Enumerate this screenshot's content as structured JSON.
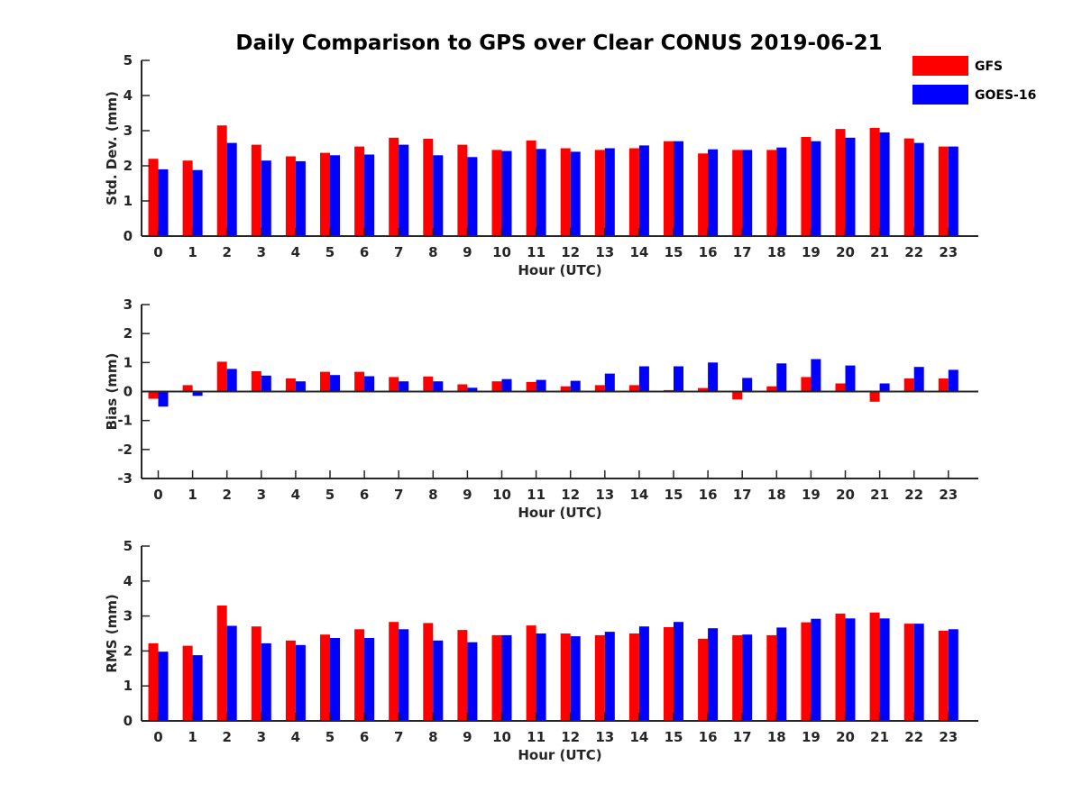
{
  "title": "Daily Comparison to GPS over Clear CONUS 2019-06-21",
  "colors": {
    "gfs": "#ff0000",
    "goes": "#0000ff",
    "axis": "#262626"
  },
  "legend": [
    {
      "name": "GFS",
      "color": "#ff0000"
    },
    {
      "name": "GOES-16",
      "color": "#0000ff"
    }
  ],
  "legend_position": "top-right",
  "chart_data": [
    {
      "type": "bar",
      "title": "Daily Comparison to GPS over Clear CONUS 2019-06-21",
      "xlabel": "Hour (UTC)",
      "ylabel": "Std. Dev. (mm)",
      "ylim": [
        0,
        5
      ],
      "yticks": [
        "0",
        "1",
        "2",
        "3",
        "4",
        "5"
      ],
      "categories": [
        "0",
        "1",
        "2",
        "3",
        "4",
        "5",
        "6",
        "7",
        "8",
        "9",
        "10",
        "11",
        "12",
        "13",
        "14",
        "15",
        "16",
        "17",
        "18",
        "19",
        "20",
        "21",
        "22",
        "23"
      ],
      "series": [
        {
          "name": "GFS",
          "values": [
            2.2,
            2.15,
            3.15,
            2.6,
            2.27,
            2.37,
            2.55,
            2.8,
            2.77,
            2.6,
            2.45,
            2.72,
            2.5,
            2.45,
            2.5,
            2.7,
            2.35,
            2.45,
            2.45,
            2.82,
            3.05,
            3.08,
            2.78,
            2.55
          ]
        },
        {
          "name": "GOES-16",
          "values": [
            1.9,
            1.88,
            2.65,
            2.15,
            2.13,
            2.3,
            2.32,
            2.6,
            2.3,
            2.25,
            2.42,
            2.48,
            2.4,
            2.5,
            2.58,
            2.7,
            2.47,
            2.45,
            2.52,
            2.7,
            2.8,
            2.95,
            2.65,
            2.55
          ]
        }
      ]
    },
    {
      "type": "bar",
      "xlabel": "Hour (UTC)",
      "ylabel": "Bias (mm)",
      "ylim": [
        -3,
        3
      ],
      "yticks": [
        "-3",
        "-2",
        "-1",
        "0",
        "1",
        "2",
        "3"
      ],
      "categories": [
        "0",
        "1",
        "2",
        "3",
        "4",
        "5",
        "6",
        "7",
        "8",
        "9",
        "10",
        "11",
        "12",
        "13",
        "14",
        "15",
        "16",
        "17",
        "18",
        "19",
        "20",
        "21",
        "22",
        "23"
      ],
      "series": [
        {
          "name": "GFS",
          "values": [
            -0.25,
            0.22,
            1.03,
            0.7,
            0.45,
            0.68,
            0.68,
            0.5,
            0.52,
            0.25,
            0.35,
            0.33,
            0.18,
            0.22,
            0.22,
            0.05,
            0.12,
            -0.27,
            0.18,
            0.5,
            0.28,
            -0.35,
            0.45,
            0.45
          ]
        },
        {
          "name": "GOES-16",
          "values": [
            -0.52,
            -0.15,
            0.78,
            0.55,
            0.35,
            0.57,
            0.53,
            0.35,
            0.35,
            0.13,
            0.43,
            0.4,
            0.37,
            0.62,
            0.87,
            0.87,
            1.0,
            0.47,
            0.97,
            1.12,
            0.9,
            0.28,
            0.85,
            0.75
          ]
        }
      ]
    },
    {
      "type": "bar",
      "xlabel": "Hour (UTC)",
      "ylabel": "RMS (mm)",
      "ylim": [
        0,
        5
      ],
      "yticks": [
        "0",
        "1",
        "2",
        "3",
        "4",
        "5"
      ],
      "categories": [
        "0",
        "1",
        "2",
        "3",
        "4",
        "5",
        "6",
        "7",
        "8",
        "9",
        "10",
        "11",
        "12",
        "13",
        "14",
        "15",
        "16",
        "17",
        "18",
        "19",
        "20",
        "21",
        "22",
        "23"
      ],
      "series": [
        {
          "name": "GFS",
          "values": [
            2.22,
            2.15,
            3.3,
            2.7,
            2.3,
            2.47,
            2.62,
            2.83,
            2.8,
            2.6,
            2.45,
            2.73,
            2.5,
            2.45,
            2.5,
            2.68,
            2.35,
            2.45,
            2.45,
            2.82,
            3.07,
            3.1,
            2.78,
            2.58
          ]
        },
        {
          "name": "GOES-16",
          "values": [
            1.98,
            1.88,
            2.72,
            2.22,
            2.17,
            2.37,
            2.37,
            2.62,
            2.3,
            2.25,
            2.45,
            2.5,
            2.42,
            2.55,
            2.7,
            2.83,
            2.65,
            2.47,
            2.67,
            2.92,
            2.93,
            2.93,
            2.78,
            2.62
          ]
        }
      ]
    }
  ]
}
